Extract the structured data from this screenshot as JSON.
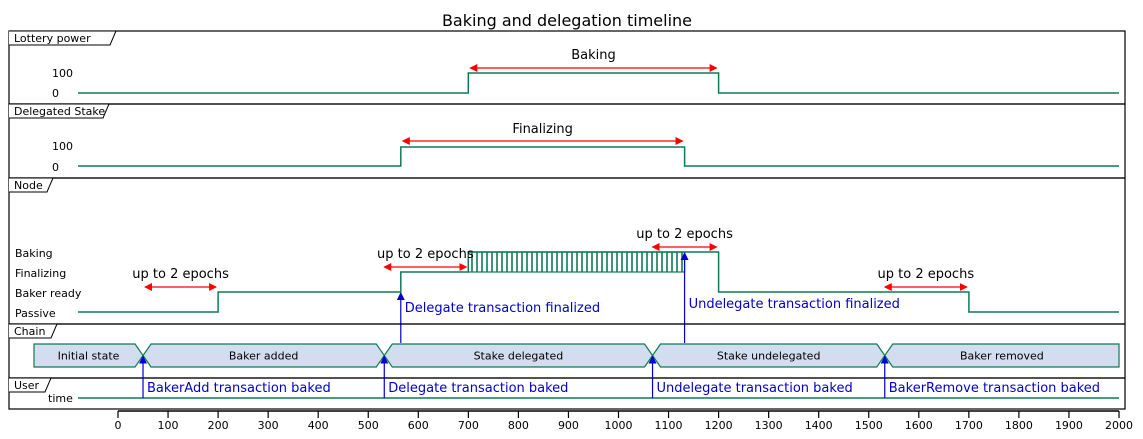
{
  "title": "Baking and delegation timeline",
  "panels": {
    "lottery": {
      "label": "Lottery power",
      "levels": [
        "100",
        "0"
      ],
      "interval_label": "Baking",
      "signal": [
        [
          0,
          0
        ],
        [
          700,
          0
        ],
        [
          700,
          100
        ],
        [
          1200,
          100
        ],
        [
          1200,
          0
        ],
        [
          2000,
          0
        ]
      ],
      "interval": [
        700,
        1200
      ]
    },
    "delegated": {
      "label": "Delegated Stake",
      "levels": [
        "100",
        "0"
      ],
      "interval_label": "Finalizing",
      "signal": [
        [
          0,
          0
        ],
        [
          565,
          0
        ],
        [
          565,
          100
        ],
        [
          1132,
          100
        ],
        [
          1132,
          0
        ],
        [
          2000,
          0
        ]
      ],
      "interval": [
        565,
        1132
      ]
    },
    "node": {
      "label": "Node",
      "levels": [
        "Baking",
        "Finalizing",
        "Baker ready",
        "Passive"
      ],
      "signal": [
        [
          0,
          0
        ],
        [
          200,
          0
        ],
        [
          200,
          1
        ],
        [
          565,
          1
        ],
        [
          565,
          2
        ],
        [
          700,
          2
        ],
        [
          700,
          3
        ],
        [
          1200,
          3
        ],
        [
          1200,
          1
        ],
        [
          1700,
          1
        ],
        [
          1700,
          0
        ],
        [
          2000,
          0
        ]
      ],
      "hatch": [
        700,
        1132
      ],
      "spans": [
        {
          "label": "up to 2 epochs",
          "from": 50,
          "to": 200
        },
        {
          "label": "up to 2 epochs",
          "from": 528,
          "to": 700
        },
        {
          "label": "up to 2 epochs",
          "from": 1064,
          "to": 1200
        },
        {
          "label": "up to 2 epochs",
          "from": 1528,
          "to": 1700
        }
      ],
      "events": [
        {
          "label": "Delegate transaction finalized",
          "x": 565
        },
        {
          "label": "Undelegate transaction finalized",
          "x": 1132
        }
      ]
    },
    "chain": {
      "label": "Chain",
      "states": [
        {
          "label": "Initial state",
          "from": -170,
          "to": 50
        },
        {
          "label": "Baker added",
          "from": 50,
          "to": 532
        },
        {
          "label": "Stake delegated",
          "from": 532,
          "to": 1068
        },
        {
          "label": "Stake undelegated",
          "from": 1068,
          "to": 1532
        },
        {
          "label": "Baker removed",
          "from": 1532,
          "to": 2000
        }
      ]
    },
    "user": {
      "label": "User",
      "row_label": "time",
      "events": [
        {
          "label": "BakerAdd transaction baked",
          "x": 50
        },
        {
          "label": "Delegate transaction baked",
          "x": 532
        },
        {
          "label": "Undelegate transaction baked",
          "x": 1068
        },
        {
          "label": "BakerRemove transaction baked",
          "x": 1532
        }
      ]
    }
  },
  "axis": {
    "range": [
      0,
      2000
    ],
    "ticks": [
      "0",
      "100",
      "200",
      "300",
      "400",
      "500",
      "600",
      "700",
      "800",
      "900",
      "1000",
      "1100",
      "1200",
      "1300",
      "1400",
      "1500",
      "1600",
      "1700",
      "1800",
      "1900",
      "2000"
    ]
  },
  "colors": {
    "signal": "#0f7a55",
    "span_arrow": "#ff0000",
    "event": "#0000cc",
    "state_fill": "#d2ddef",
    "state_border": "#0f7a55",
    "panel_border": "#000000"
  }
}
